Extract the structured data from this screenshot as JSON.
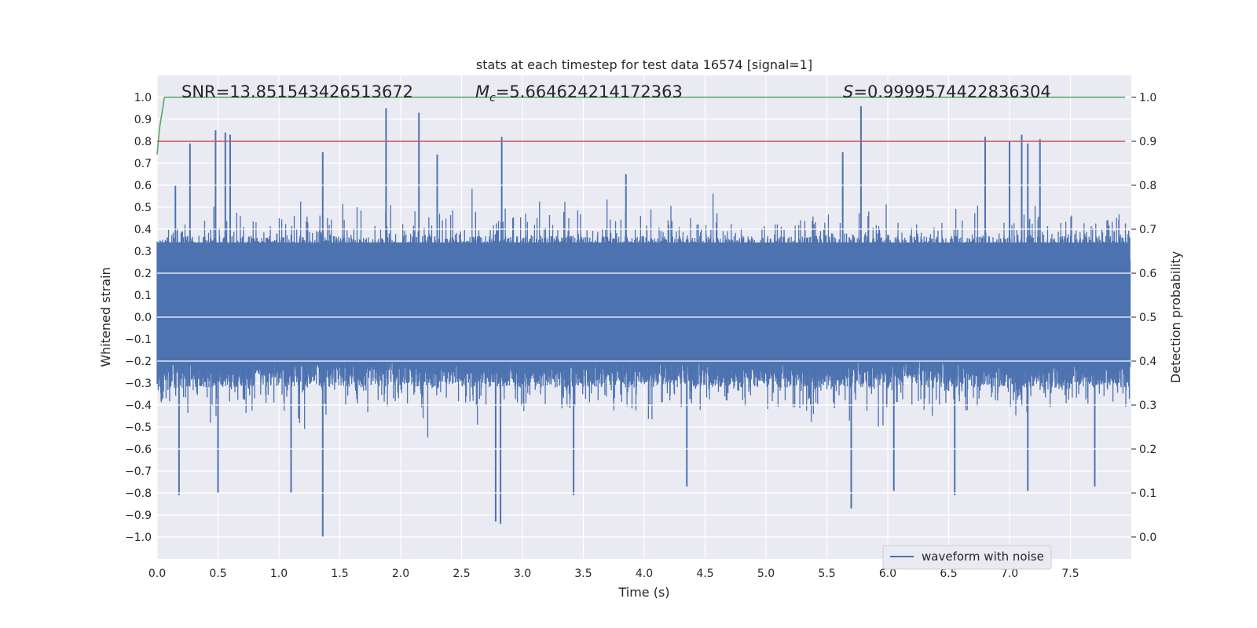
{
  "chart_data": {
    "type": "line",
    "title": "stats at each timestep for test data 16574 [signal=1]",
    "xlabel": "Time (s)",
    "ylabel": "Whitened strain",
    "y2label": "Detection probability",
    "xlim": [
      0.0,
      8.0
    ],
    "ylim": [
      -1.1,
      1.1
    ],
    "y2lim": [
      -0.05,
      1.05
    ],
    "xticks": [
      0.0,
      0.5,
      1.0,
      1.5,
      2.0,
      2.5,
      3.0,
      3.5,
      4.0,
      4.5,
      5.0,
      5.5,
      6.0,
      6.5,
      7.0,
      7.5
    ],
    "yticks": [
      -1.0,
      -0.9,
      -0.8,
      -0.7,
      -0.6,
      -0.5,
      -0.4,
      -0.3,
      -0.2,
      -0.1,
      0.0,
      0.1,
      0.2,
      0.3,
      0.4,
      0.5,
      0.6,
      0.7,
      0.8,
      0.9,
      1.0
    ],
    "y2ticks": [
      0.0,
      0.1,
      0.2,
      0.3,
      0.4,
      0.5,
      0.6,
      0.7,
      0.8,
      0.9,
      1.0
    ],
    "grid": true,
    "legend": {
      "location": "lower-right",
      "entries": [
        "waveform with noise"
      ]
    },
    "annotations": [
      {
        "prefix": "SNR",
        "value": "=13.851543426513672"
      },
      {
        "prefix": "M",
        "subscript": "c",
        "value": "=5.664624214172363"
      },
      {
        "prefix": "S",
        "value": "=0.9999574422836304"
      }
    ],
    "series": [
      {
        "name": "waveform with noise",
        "axis": "left",
        "color": "#4c72b0",
        "description_envelope": "dense noise, mostly between -0.45 and 0.5",
        "upper_peaks": [
          [
            0.15,
            0.6
          ],
          [
            0.27,
            0.79
          ],
          [
            0.48,
            0.85
          ],
          [
            0.56,
            0.84
          ],
          [
            0.6,
            0.83
          ],
          [
            1.36,
            0.75
          ],
          [
            1.88,
            0.95
          ],
          [
            2.15,
            0.93
          ],
          [
            2.3,
            0.74
          ],
          [
            2.83,
            0.82
          ],
          [
            3.85,
            0.65
          ],
          [
            5.63,
            0.75
          ],
          [
            5.78,
            0.96
          ],
          [
            6.8,
            0.82
          ],
          [
            7.0,
            0.8
          ],
          [
            7.1,
            0.83
          ],
          [
            7.15,
            0.79
          ],
          [
            7.25,
            0.81
          ]
        ],
        "lower_peaks": [
          [
            0.18,
            -0.81
          ],
          [
            0.5,
            -0.8
          ],
          [
            1.1,
            -0.8
          ],
          [
            1.36,
            -1.0
          ],
          [
            2.78,
            -0.93
          ],
          [
            2.82,
            -0.94
          ],
          [
            3.42,
            -0.81
          ],
          [
            4.35,
            -0.77
          ],
          [
            5.7,
            -0.87
          ],
          [
            6.05,
            -0.79
          ],
          [
            6.55,
            -0.81
          ],
          [
            7.15,
            -0.79
          ],
          [
            7.7,
            -0.77
          ]
        ]
      },
      {
        "name": "",
        "axis": "right",
        "color": "#55a868",
        "x": [
          0.0,
          0.02,
          0.06,
          0.1,
          1.0,
          2.0,
          3.0,
          4.0,
          5.0,
          6.0,
          7.0,
          7.95
        ],
        "values": [
          0.87,
          0.93,
          1.0,
          1.0,
          1.0,
          1.0,
          1.0,
          1.0,
          1.0,
          1.0,
          1.0,
          1.0
        ]
      },
      {
        "name": "",
        "axis": "right",
        "color": "#c44e52",
        "x": [
          0.0,
          7.95
        ],
        "values": [
          0.9,
          0.9
        ]
      }
    ]
  }
}
